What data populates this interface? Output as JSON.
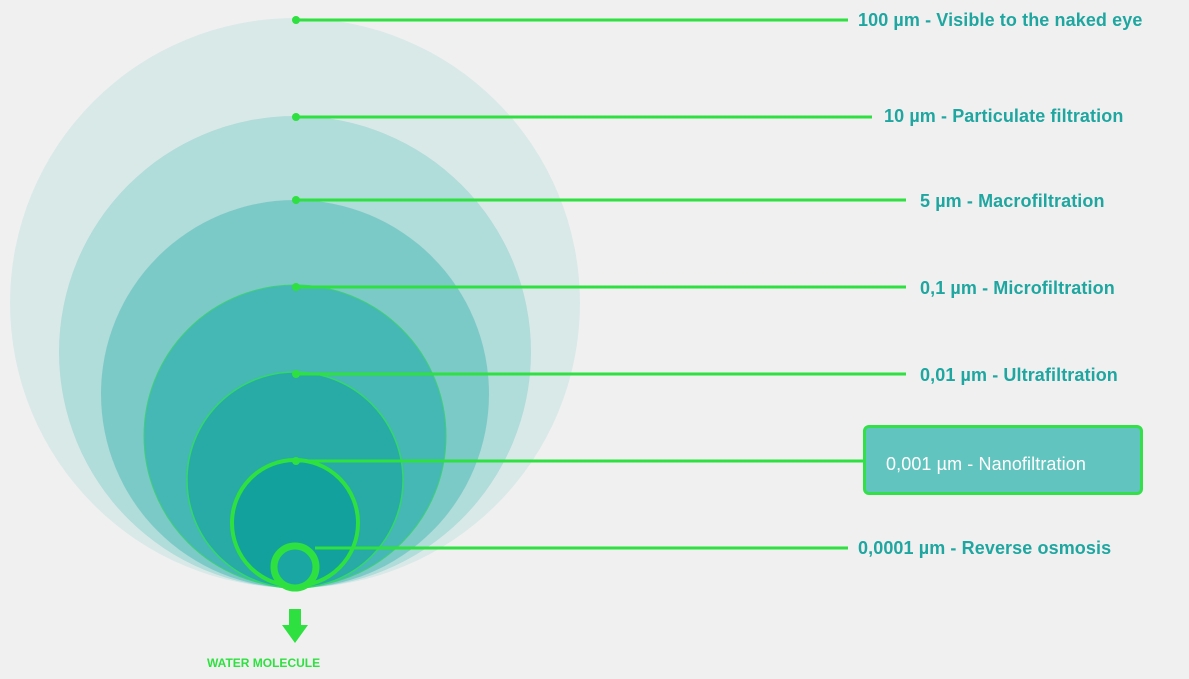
{
  "levels": [
    {
      "id": "lvl-100um",
      "text": "100 µm - Visible to the naked eye"
    },
    {
      "id": "lvl-10um",
      "text": "10 µm - Particulate filtration"
    },
    {
      "id": "lvl-5um",
      "text": "5 µm - Macrofiltration"
    },
    {
      "id": "lvl-0-1um",
      "text": "0,1 µm - Microfiltration"
    },
    {
      "id": "lvl-0-01um",
      "text": "0,01 µm - Ultrafiltration"
    },
    {
      "id": "lvl-0-001um",
      "text": "0,001 µm - Nanofiltration",
      "highlighted": true
    },
    {
      "id": "lvl-0-0001um",
      "text": "0,0001 µm - Reverse osmosis"
    }
  ],
  "water_molecule_label": "WATER MOLECULE",
  "colors": {
    "background": "#f0f0f0",
    "label_text": "#1fa6a0",
    "line_green": "#2ee040",
    "highlight_fill": "#62c4bf",
    "highlight_border": "#33e04a",
    "circle_1": "#d9e9e8",
    "circle_2": "#b0dcda",
    "circle_3": "#7ccac7",
    "circle_4": "#45b8b5",
    "circle_5": "#28aaa6",
    "circle_6": "#12a19d",
    "circle_7": "#0e9f9b"
  },
  "icons": {
    "arrow": "arrow-down-icon",
    "molecule": "water-molecule-icon"
  }
}
